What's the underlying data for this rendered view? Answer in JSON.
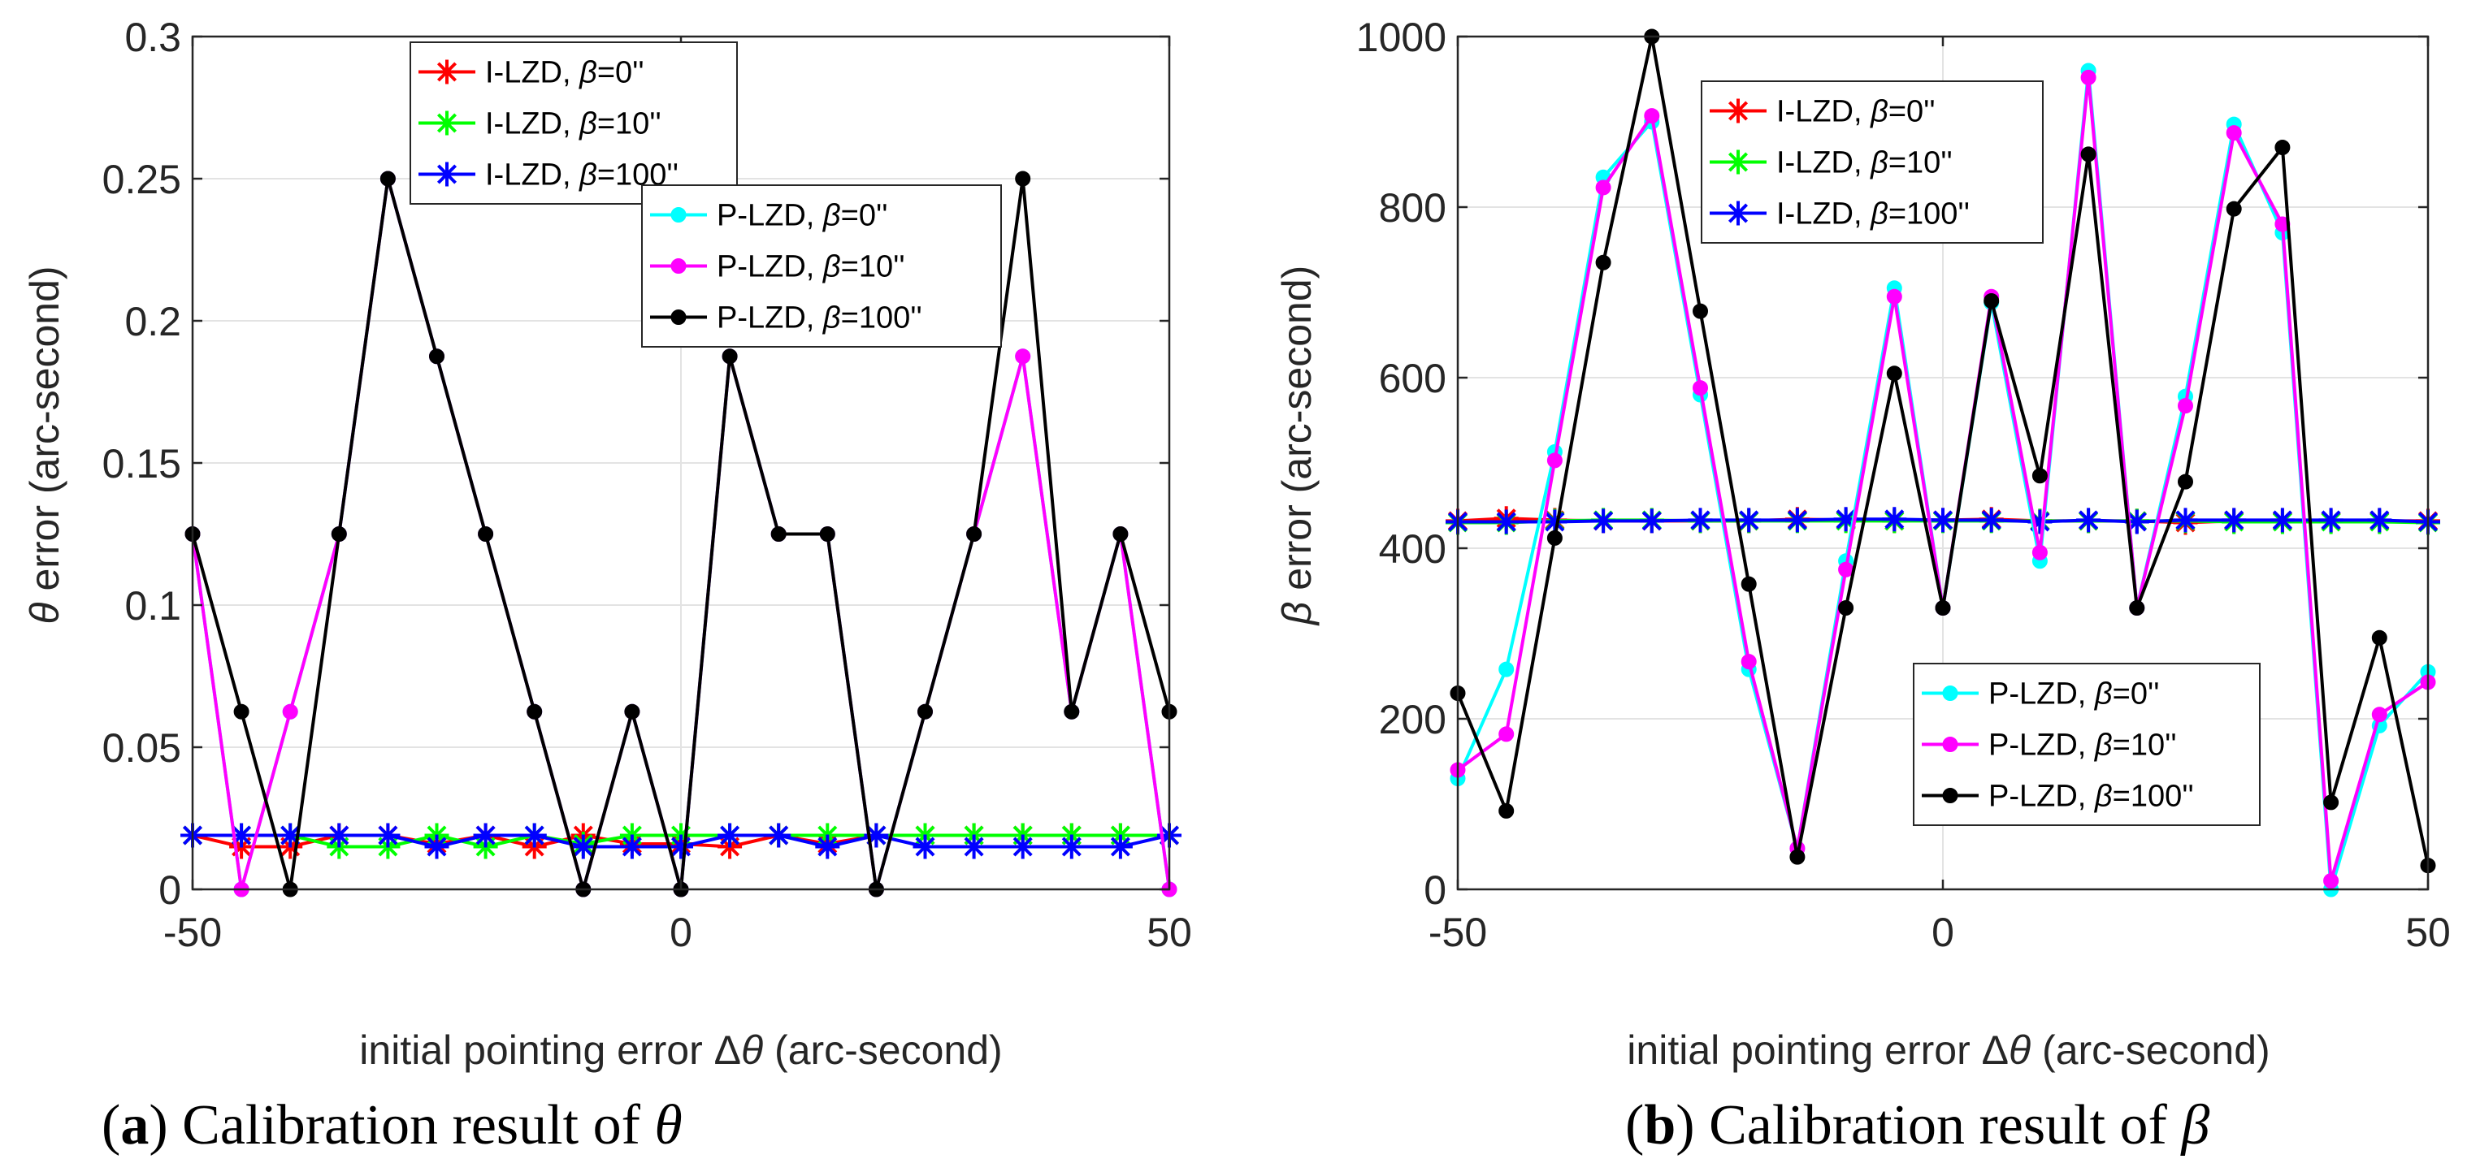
{
  "chart_data": [
    {
      "type": "line",
      "id": "a",
      "caption": {
        "letter": "a",
        "text": "Calibration result of",
        "symbol": "θ"
      },
      "xlabel": {
        "pre": "initial pointing error ",
        "sym1": "Δ",
        "sym2": "θ",
        "post": " (arc-second)"
      },
      "ylabel": {
        "sym": "θ",
        "post": " error (arc-second)"
      },
      "xlim": [
        -50,
        50
      ],
      "ylim": [
        0,
        0.3
      ],
      "xticks": [
        -50,
        0,
        50
      ],
      "xtick_labels": [
        "-50",
        "0",
        "50"
      ],
      "yticks": [
        0,
        0.05,
        0.1,
        0.15,
        0.2,
        0.25,
        0.3
      ],
      "ytick_labels": [
        "0",
        "0.05",
        "0.1",
        "0.15",
        "0.2",
        "0.25",
        "0.3"
      ],
      "grid": true,
      "x": [
        -50,
        -45,
        -40,
        -35,
        -30,
        -25,
        -20,
        -15,
        -10,
        -5,
        0,
        5,
        10,
        15,
        20,
        25,
        30,
        35,
        40,
        45,
        50
      ],
      "series": [
        {
          "name": "I-LZD",
          "beta": "β=0''",
          "color": "#ff0000",
          "marker": "star",
          "values": [
            0.019,
            0.015,
            0.015,
            0.019,
            0.019,
            0.016,
            0.019,
            0.015,
            0.019,
            0.016,
            0.016,
            0.015,
            0.019,
            0.016,
            0.019,
            0.019,
            0.019,
            0.019,
            0.019,
            0.019,
            0.019
          ]
        },
        {
          "name": "I-LZD",
          "beta": "β=10''",
          "color": "#00ff00",
          "marker": "star",
          "values": [
            0.019,
            0.019,
            0.019,
            0.015,
            0.015,
            0.019,
            0.015,
            0.019,
            0.016,
            0.019,
            0.019,
            0.019,
            0.019,
            0.019,
            0.019,
            0.019,
            0.019,
            0.019,
            0.019,
            0.019,
            0.019
          ]
        },
        {
          "name": "I-LZD",
          "beta": "β=100''",
          "color": "#0000ff",
          "marker": "star",
          "values": [
            0.019,
            0.019,
            0.019,
            0.019,
            0.019,
            0.015,
            0.019,
            0.019,
            0.015,
            0.015,
            0.015,
            0.019,
            0.019,
            0.015,
            0.019,
            0.015,
            0.015,
            0.015,
            0.015,
            0.015,
            0.019
          ]
        },
        {
          "name": "P-LZD",
          "beta": "β=0''",
          "color": "#00ffff",
          "marker": "dot",
          "values": [
            0.125,
            0.0,
            0.0625,
            0.125,
            0.25,
            0.1875,
            0.125,
            0.0625,
            0.0,
            0.0625,
            0.0,
            0.1875,
            0.125,
            0.125,
            0.0,
            0.0625,
            0.125,
            0.1875,
            0.0625,
            0.125,
            0.0
          ]
        },
        {
          "name": "P-LZD",
          "beta": "β=10''",
          "color": "#ff00ff",
          "marker": "dot",
          "values": [
            0.125,
            0.0,
            0.0625,
            0.125,
            0.25,
            0.1875,
            0.125,
            0.0625,
            0.0,
            0.0625,
            0.0,
            0.1875,
            0.125,
            0.125,
            0.0,
            0.0625,
            0.125,
            0.1875,
            0.0625,
            0.125,
            0.0
          ]
        },
        {
          "name": "P-LZD",
          "beta": "β=100''",
          "color": "#000000",
          "marker": "dot",
          "values": [
            0.125,
            0.0625,
            0.0,
            0.125,
            0.25,
            0.1875,
            0.125,
            0.0625,
            0.0,
            0.0625,
            0.0,
            0.1875,
            0.125,
            0.125,
            0.0,
            0.0625,
            0.125,
            0.25,
            0.0625,
            0.125,
            0.0625
          ]
        }
      ],
      "legends": [
        {
          "location": "top-center",
          "series": [
            0,
            1,
            2
          ]
        },
        {
          "location": "top-center-right",
          "series": [
            3,
            4,
            5
          ]
        }
      ]
    },
    {
      "type": "line",
      "id": "b",
      "caption": {
        "letter": "b",
        "text": "Calibration result of",
        "symbol": "β"
      },
      "xlabel": {
        "pre": "initial pointing error ",
        "sym1": "Δ",
        "sym2": "θ",
        "post": " (arc-second)"
      },
      "ylabel": {
        "sym": "β",
        "post": " error (arc-second)"
      },
      "xlim": [
        -50,
        50
      ],
      "ylim": [
        0,
        1000
      ],
      "xticks": [
        -50,
        0,
        50
      ],
      "xtick_labels": [
        "-50",
        "0",
        "50"
      ],
      "yticks": [
        0,
        200,
        400,
        600,
        800,
        1000
      ],
      "ytick_labels": [
        "0",
        "200",
        "400",
        "600",
        "800",
        "1000"
      ],
      "grid": true,
      "x": [
        -50,
        -45,
        -40,
        -35,
        -30,
        -25,
        -20,
        -15,
        -10,
        -5,
        0,
        5,
        10,
        15,
        20,
        25,
        30,
        35,
        40,
        45,
        50
      ],
      "series": [
        {
          "name": "I-LZD",
          "beta": "β=0''",
          "color": "#ff0000",
          "marker": "star",
          "values": [
            432,
            435,
            433,
            432,
            432,
            432,
            432,
            434,
            433,
            432,
            433,
            434,
            432,
            432,
            432,
            430,
            432,
            432,
            432,
            432,
            432
          ]
        },
        {
          "name": "I-LZD",
          "beta": "β=10''",
          "color": "#00ff00",
          "marker": "star",
          "values": [
            430,
            430,
            432,
            433,
            433,
            432,
            432,
            432,
            432,
            432,
            432,
            432,
            432,
            432,
            432,
            432,
            431,
            431,
            431,
            431,
            430
          ]
        },
        {
          "name": "I-LZD",
          "beta": "β=100''",
          "color": "#0000ff",
          "marker": "star",
          "values": [
            431,
            431,
            431,
            432,
            432,
            433,
            433,
            433,
            434,
            434,
            433,
            433,
            431,
            433,
            431,
            433,
            433,
            433,
            433,
            433,
            431
          ]
        },
        {
          "name": "P-LZD",
          "beta": "β=0''",
          "color": "#00ffff",
          "marker": "dot",
          "values": [
            130,
            258,
            513,
            835,
            900,
            580,
            258,
            48,
            385,
            705,
            330,
            688,
            385,
            960,
            330,
            578,
            897,
            770,
            0,
            192,
            255
          ]
        },
        {
          "name": "P-LZD",
          "beta": "β=10''",
          "color": "#ff00ff",
          "marker": "dot",
          "values": [
            140,
            182,
            503,
            823,
            907,
            588,
            267,
            48,
            375,
            695,
            330,
            695,
            395,
            952,
            330,
            567,
            887,
            780,
            10,
            205,
            243
          ]
        },
        {
          "name": "P-LZD",
          "beta": "β=100''",
          "color": "#000000",
          "marker": "dot",
          "values": [
            230,
            92,
            412,
            735,
            1000,
            678,
            358,
            38,
            330,
            605,
            330,
            690,
            485,
            862,
            330,
            478,
            798,
            870,
            102,
            295,
            28
          ]
        }
      ],
      "legends": [
        {
          "location": "top-left",
          "series": [
            0,
            1,
            2
          ]
        },
        {
          "location": "bottom-right",
          "series": [
            3,
            4,
            5
          ]
        }
      ]
    }
  ]
}
